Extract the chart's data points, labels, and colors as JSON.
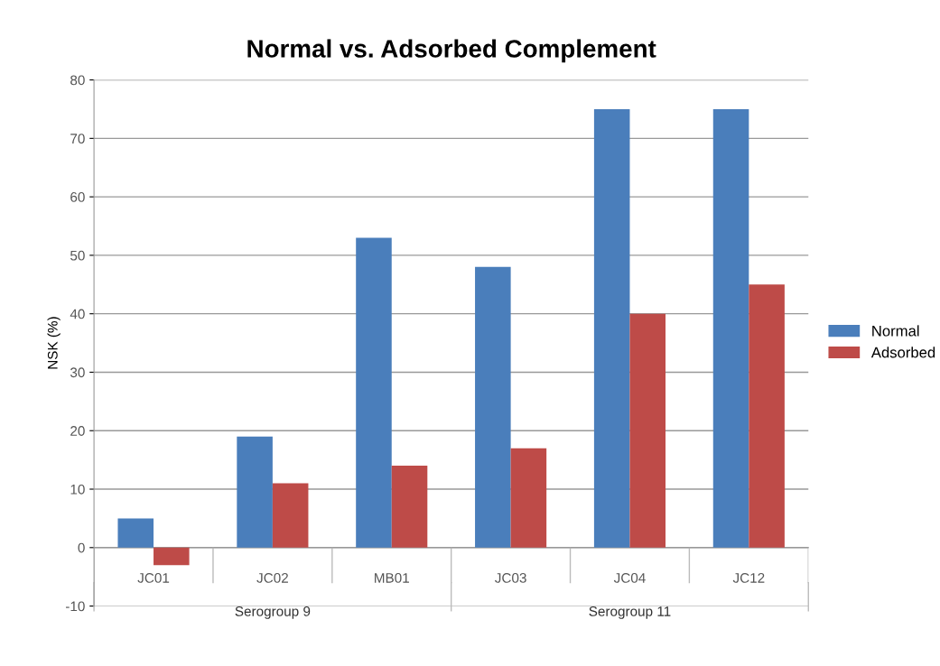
{
  "chart_data": {
    "type": "bar",
    "title": "Normal vs. Adsorbed Complement",
    "ylabel": "NSK (%)",
    "categories": [
      "JC01",
      "JC02",
      "MB01",
      "JC03",
      "JC04",
      "JC12"
    ],
    "series": [
      {
        "name": "Normal",
        "color": "#4a7ebb",
        "values": [
          5,
          19,
          53,
          48,
          75,
          75
        ]
      },
      {
        "name": "Adsorbed",
        "color": "#be4b48",
        "values": [
          -3,
          11,
          14,
          17,
          40,
          45
        ]
      }
    ],
    "annotations": [
      "Serogroup 9",
      "Serogroup 11"
    ],
    "ylim": [
      -10,
      80
    ],
    "yticks": [
      -10,
      0,
      10,
      20,
      30,
      40,
      50,
      60,
      70,
      80
    ],
    "grid": "y",
    "legend": "right"
  }
}
